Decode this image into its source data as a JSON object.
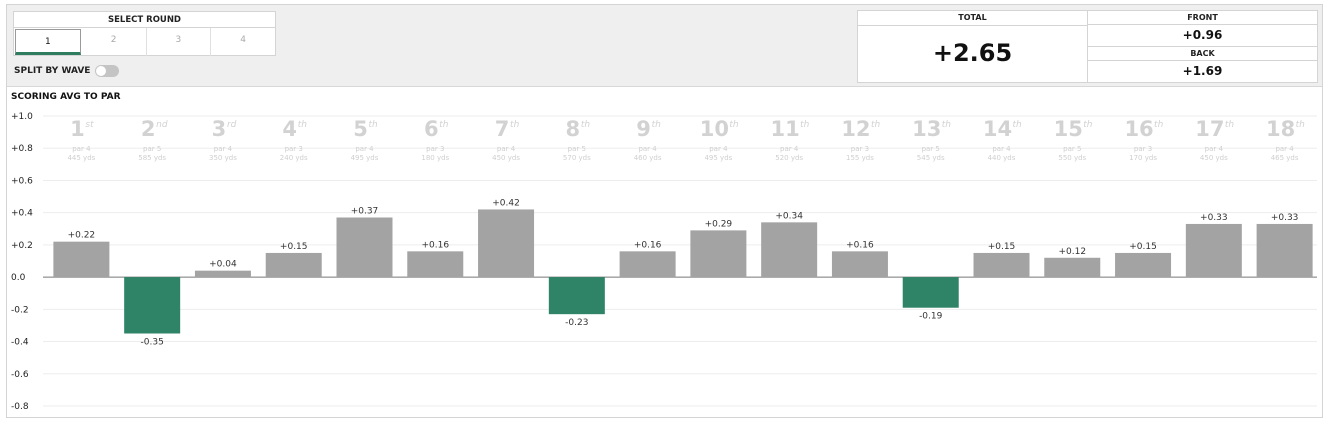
{
  "select_round": {
    "title": "SELECT ROUND",
    "tabs": [
      "1",
      "2",
      "3",
      "4"
    ],
    "active": "1"
  },
  "split_by_wave": {
    "label": "SPLIT BY WAVE",
    "enabled": false
  },
  "scores": {
    "total_label": "TOTAL",
    "total_value": "+2.65",
    "front_label": "FRONT",
    "front_value": "+0.96",
    "back_label": "BACK",
    "back_value": "+1.69"
  },
  "colors": {
    "positive_bar": "#a3a3a3",
    "negative_bar": "#2f8467",
    "active_tab_underline": "#2f7d5f"
  },
  "chart_data": {
    "type": "bar",
    "title": "SCORING AVG TO PAR",
    "ylim": [
      -0.8,
      1.0
    ],
    "yticks": [
      "+1.0",
      "+0.8",
      "+0.6",
      "+0.4",
      "+0.2",
      "0.0",
      "-0.2",
      "-0.4",
      "-0.6",
      "-0.8"
    ],
    "ytick_values": [
      1.0,
      0.8,
      0.6,
      0.4,
      0.2,
      0.0,
      -0.2,
      -0.4,
      -0.6,
      -0.8
    ],
    "grid": true,
    "holes": [
      {
        "num": "1",
        "suffix": "st",
        "par": "par 4",
        "yds": "445 yds",
        "value": 0.22,
        "label": "+0.22"
      },
      {
        "num": "2",
        "suffix": "nd",
        "par": "par 5",
        "yds": "585 yds",
        "value": -0.35,
        "label": "-0.35"
      },
      {
        "num": "3",
        "suffix": "rd",
        "par": "par 4",
        "yds": "350 yds",
        "value": 0.04,
        "label": "+0.04"
      },
      {
        "num": "4",
        "suffix": "th",
        "par": "par 3",
        "yds": "240 yds",
        "value": 0.15,
        "label": "+0.15"
      },
      {
        "num": "5",
        "suffix": "th",
        "par": "par 4",
        "yds": "495 yds",
        "value": 0.37,
        "label": "+0.37"
      },
      {
        "num": "6",
        "suffix": "th",
        "par": "par 3",
        "yds": "180 yds",
        "value": 0.16,
        "label": "+0.16"
      },
      {
        "num": "7",
        "suffix": "th",
        "par": "par 4",
        "yds": "450 yds",
        "value": 0.42,
        "label": "+0.42"
      },
      {
        "num": "8",
        "suffix": "th",
        "par": "par 5",
        "yds": "570 yds",
        "value": -0.23,
        "label": "-0.23"
      },
      {
        "num": "9",
        "suffix": "th",
        "par": "par 4",
        "yds": "460 yds",
        "value": 0.16,
        "label": "+0.16"
      },
      {
        "num": "10",
        "suffix": "th",
        "par": "par 4",
        "yds": "495 yds",
        "value": 0.29,
        "label": "+0.29"
      },
      {
        "num": "11",
        "suffix": "th",
        "par": "par 4",
        "yds": "520 yds",
        "value": 0.34,
        "label": "+0.34"
      },
      {
        "num": "12",
        "suffix": "th",
        "par": "par 3",
        "yds": "155 yds",
        "value": 0.16,
        "label": "+0.16"
      },
      {
        "num": "13",
        "suffix": "th",
        "par": "par 5",
        "yds": "545 yds",
        "value": -0.19,
        "label": "-0.19"
      },
      {
        "num": "14",
        "suffix": "th",
        "par": "par 4",
        "yds": "440 yds",
        "value": 0.15,
        "label": "+0.15"
      },
      {
        "num": "15",
        "suffix": "th",
        "par": "par 5",
        "yds": "550 yds",
        "value": 0.12,
        "label": "+0.12"
      },
      {
        "num": "16",
        "suffix": "th",
        "par": "par 3",
        "yds": "170 yds",
        "value": 0.15,
        "label": "+0.15"
      },
      {
        "num": "17",
        "suffix": "th",
        "par": "par 4",
        "yds": "450 yds",
        "value": 0.33,
        "label": "+0.33"
      },
      {
        "num": "18",
        "suffix": "th",
        "par": "par 4",
        "yds": "465 yds",
        "value": 0.33,
        "label": "+0.33"
      }
    ]
  }
}
